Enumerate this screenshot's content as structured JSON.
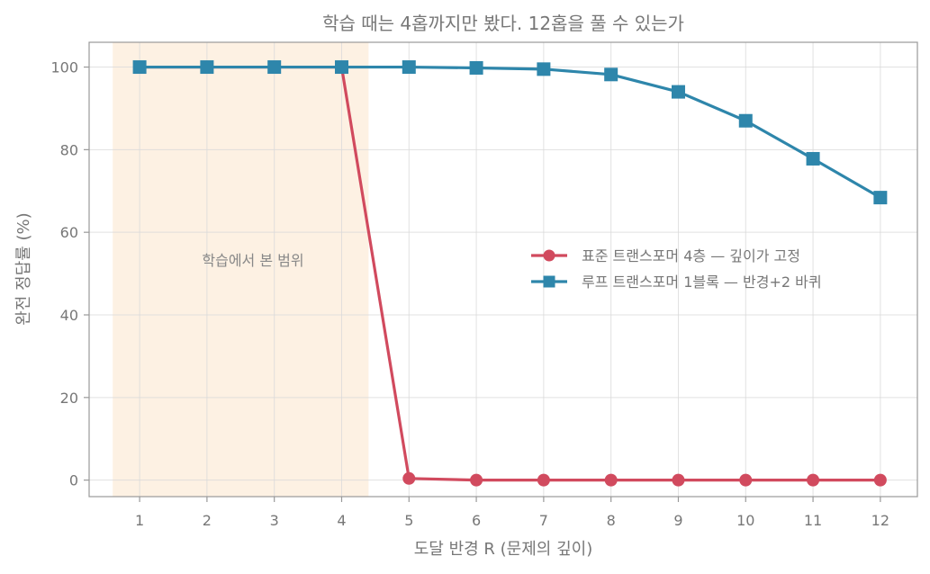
{
  "chart_data": {
    "type": "line",
    "title": "학습 때는 4홉까지만 봤다. 12홉을 풀 수 있는가",
    "xlabel": "도달 반경 R  (문제의 깊이)",
    "ylabel": "완전 정답률 (%)",
    "x": [
      1,
      2,
      3,
      4,
      5,
      6,
      7,
      8,
      9,
      10,
      11,
      12
    ],
    "x_ticks": [
      "1",
      "2",
      "3",
      "4",
      "5",
      "6",
      "7",
      "8",
      "9",
      "10",
      "11",
      "12"
    ],
    "y_ticks": [
      "0",
      "20",
      "40",
      "60",
      "80",
      "100"
    ],
    "xlim": [
      0.25,
      12.55
    ],
    "ylim": [
      -4,
      106
    ],
    "grid": true,
    "legend_position": "center-right",
    "shaded_region": {
      "x_range": [
        0.6,
        4.4
      ],
      "label": "학습에서 본 범위",
      "color": "#fdf1e3"
    },
    "series": [
      {
        "name": "표준 트랜스포머 4층 — 깊이가 고정",
        "color": "#d14a5e",
        "marker": "circle",
        "values": [
          100,
          100,
          100,
          100,
          0.4,
          0,
          0,
          0,
          0,
          0,
          0,
          0
        ]
      },
      {
        "name": "루프 트랜스포머 1블록 — 반경+2 바퀴",
        "color": "#2e86ab",
        "marker": "square",
        "values": [
          100,
          100,
          100,
          100,
          100,
          99.8,
          99.5,
          98.2,
          94,
          87,
          77.8,
          68.4
        ]
      }
    ]
  }
}
